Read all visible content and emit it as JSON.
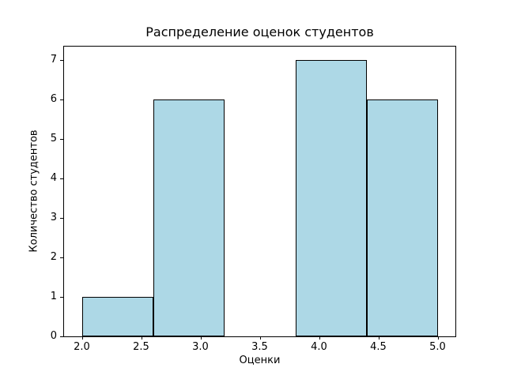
{
  "chart_data": {
    "type": "bar",
    "subtype": "histogram",
    "title": "Распределение оценок студентов",
    "xlabel": "Оценки",
    "ylabel": "Количество студентов",
    "bins": [
      2.0,
      2.6,
      3.2,
      3.8,
      4.4,
      5.0
    ],
    "counts": [
      1,
      6,
      0,
      7,
      6
    ],
    "xlim": [
      1.85,
      5.15
    ],
    "ylim": [
      0,
      7.35
    ],
    "xticks": [
      2.0,
      2.5,
      3.0,
      3.5,
      4.0,
      4.5,
      5.0
    ],
    "xtick_labels": [
      "2.0",
      "2.5",
      "3.0",
      "3.5",
      "4.0",
      "4.5",
      "5.0"
    ],
    "yticks": [
      0,
      1,
      2,
      3,
      4,
      5,
      6,
      7
    ],
    "ytick_labels": [
      "0",
      "1",
      "2",
      "3",
      "4",
      "5",
      "6",
      "7"
    ],
    "bar_color": "#ADD8E6",
    "bar_edge_color": "#000000",
    "background_color": "#FFFFFF",
    "grid": false,
    "legend": null
  }
}
